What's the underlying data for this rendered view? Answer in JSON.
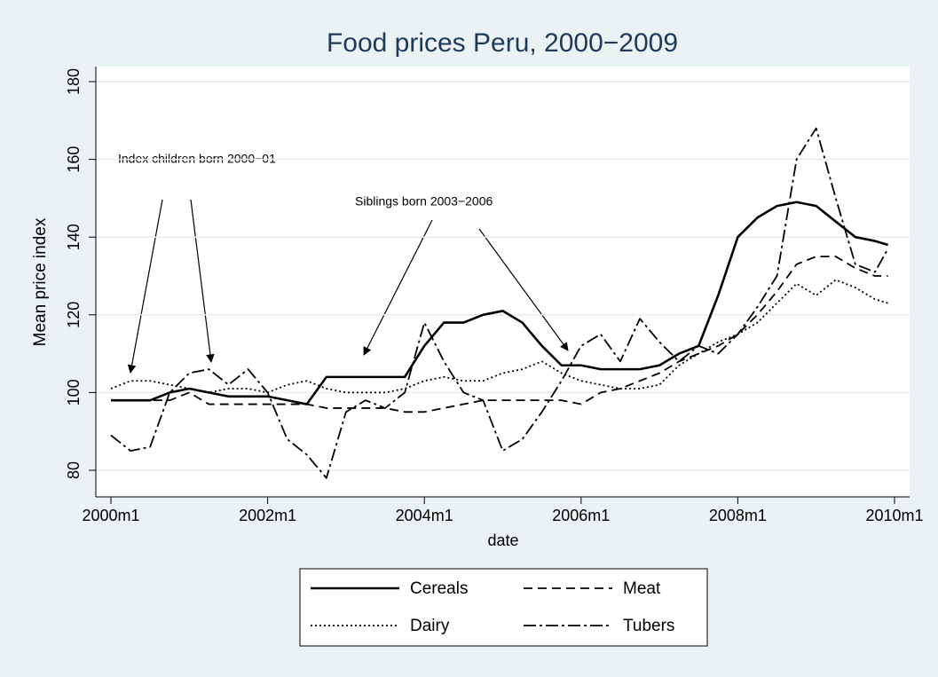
{
  "chart_data": {
    "type": "line",
    "title": "Food prices Peru, 2000−2009",
    "xlabel": "date",
    "ylabel": "Mean price index",
    "annotations": [
      "Index children born 2000−01",
      "Siblings born 2003−2006"
    ],
    "x": [
      "2000m1",
      "2000m4",
      "2000m7",
      "2000m10",
      "2001m1",
      "2001m4",
      "2001m7",
      "2001m10",
      "2002m1",
      "2002m4",
      "2002m7",
      "2002m10",
      "2003m1",
      "2003m4",
      "2003m7",
      "2003m10",
      "2004m1",
      "2004m4",
      "2004m7",
      "2004m10",
      "2005m1",
      "2005m4",
      "2005m7",
      "2005m10",
      "2006m1",
      "2006m4",
      "2006m7",
      "2006m10",
      "2007m1",
      "2007m4",
      "2007m7",
      "2007m10",
      "2008m1",
      "2008m4",
      "2008m7",
      "2008m10",
      "2009m1",
      "2009m4",
      "2009m7",
      "2009m10",
      "2009m12"
    ],
    "series": [
      {
        "name": "Cereals",
        "color": "#000000",
        "style": "solid",
        "values": [
          98,
          98,
          98,
          100,
          101,
          100,
          99,
          99,
          99,
          98,
          97,
          104,
          104,
          104,
          104,
          104,
          112,
          118,
          118,
          120,
          121,
          118,
          112,
          107,
          107,
          106,
          106,
          106,
          107,
          110,
          112,
          125,
          140,
          145,
          148,
          149,
          148,
          144,
          140,
          139,
          138
        ]
      },
      {
        "name": "Meat",
        "color": "#000000",
        "style": "dash",
        "values": [
          98,
          98,
          98,
          98,
          100,
          97,
          97,
          97,
          97,
          97,
          97,
          96,
          96,
          96,
          96,
          95,
          95,
          96,
          97,
          98,
          98,
          98,
          98,
          98,
          97,
          100,
          101,
          103,
          105,
          108,
          110,
          112,
          115,
          120,
          126,
          133,
          135,
          135,
          132,
          130,
          130
        ]
      },
      {
        "name": "Dairy",
        "color": "#000000",
        "style": "dot",
        "values": [
          101,
          103,
          103,
          102,
          101,
          100,
          101,
          101,
          100,
          102,
          103,
          101,
          100,
          100,
          100,
          101,
          103,
          104,
          103,
          103,
          105,
          106,
          108,
          105,
          103,
          102,
          101,
          101,
          102,
          107,
          110,
          113,
          115,
          118,
          123,
          128,
          125,
          129,
          127,
          124,
          123
        ]
      },
      {
        "name": "Tubers",
        "color": "#000000",
        "style": "dashdot",
        "values": [
          89,
          85,
          86,
          100,
          105,
          106,
          102,
          106,
          100,
          88,
          84,
          78,
          95,
          98,
          96,
          100,
          118,
          108,
          100,
          98,
          85,
          88,
          95,
          103,
          112,
          115,
          108,
          119,
          113,
          108,
          112,
          110,
          115,
          122,
          130,
          160,
          168,
          150,
          133,
          131,
          137
        ]
      }
    ],
    "xlim": [
      "2000m1",
      "2010m1"
    ],
    "xticks": [
      "2000m1",
      "2002m1",
      "2004m1",
      "2006m1",
      "2008m1",
      "2010m1"
    ],
    "ylim": [
      80,
      180
    ],
    "yticks": [
      80,
      100,
      120,
      140,
      160,
      180
    ],
    "grid": true,
    "legend": "bottom"
  }
}
